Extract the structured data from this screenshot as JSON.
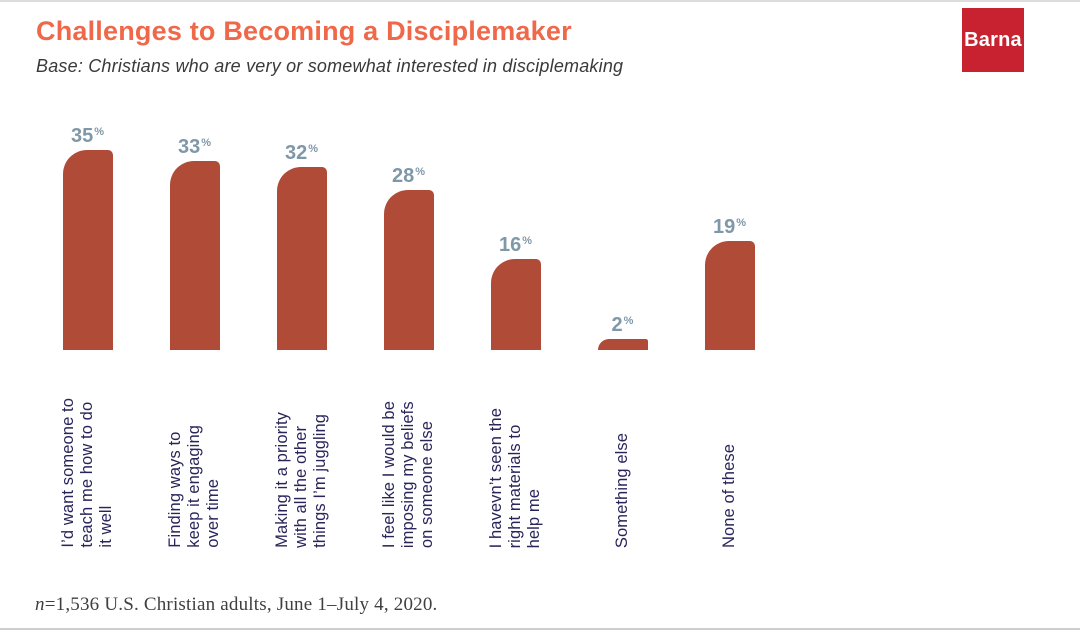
{
  "header": {
    "title": "Challenges to Becoming a Disciplemaker",
    "subtitle": "Base: Christians who are very or somewhat interested in disciplemaking"
  },
  "logo": {
    "text": "Barna"
  },
  "footnote": {
    "n_symbol": "n",
    "rest": "=1,536 U.S. Christian adults, June 1–July 4, 2020."
  },
  "colors": {
    "title": "#f0684a",
    "logo_background": "#c82130",
    "logo_text": "#ffffff",
    "bar": "#b04b38",
    "value_label": "#7f98a7",
    "category_label": "#29245a"
  },
  "chart_data": {
    "type": "bar",
    "title": "Challenges to Becoming a Disciplemaker",
    "base_note": "Base: Christians who are very or somewhat interested in disciplemaking",
    "categories": [
      "I’d want someone to\nteach me how to do\nit well",
      "Finding ways to\nkeep it engaging\nover time",
      "Making it a priority\nwith all the other\nthings I’m juggling",
      "I feel like I would be\nimposing my beliefs\non someone else",
      "I havevn’t seen the\nright materials to\nhelp me",
      "Something else",
      "None of these"
    ],
    "values": [
      35,
      33,
      32,
      28,
      16,
      2,
      19
    ],
    "value_suffix": "%",
    "xlabel": "",
    "ylabel": "",
    "ylim": [
      0,
      38
    ],
    "grid": false,
    "legend": false,
    "orientation": "vertical-bars-rotated-category-labels",
    "footnote": "n=1,536 U.S. Christian adults, June 1–July 4, 2020."
  }
}
